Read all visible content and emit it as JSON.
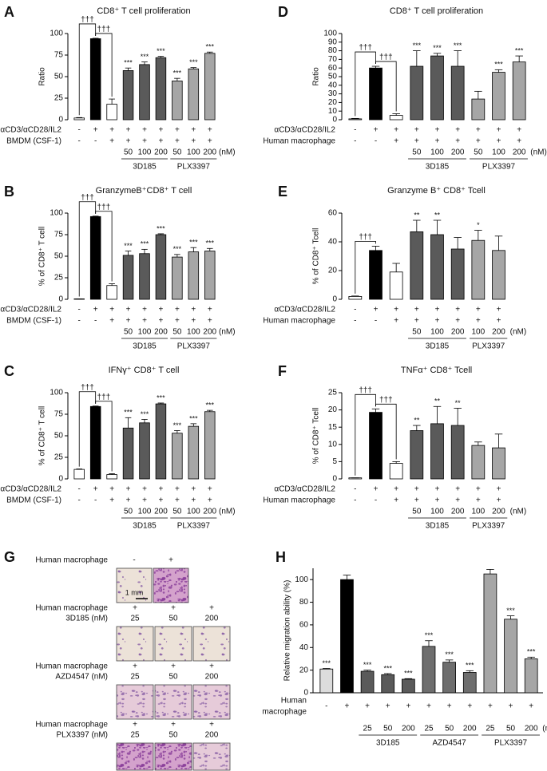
{
  "chart_data": [
    {
      "type": "bar",
      "panel": "A",
      "title": "CD8⁺ T cell proliferation",
      "ylabel": "Ratio",
      "ylim": [
        0,
        100
      ],
      "yticks": [
        0,
        25,
        50,
        75,
        100
      ],
      "values": [
        2,
        94,
        18,
        57,
        64,
        72,
        45,
        59,
        77
      ],
      "errors": [
        0.5,
        0.5,
        6,
        3,
        3,
        1.5,
        3,
        1.5,
        1.5
      ],
      "colors": [
        "#ffffff",
        "#000000",
        "#ffffff",
        "#5a5a5a",
        "#5a5a5a",
        "#5a5a5a",
        "#a6a6a6",
        "#a6a6a6",
        "#a6a6a6"
      ],
      "significance": [
        null,
        null,
        null,
        "***",
        "***",
        "***",
        "***",
        "***",
        "***"
      ],
      "comparisons": [
        "†††",
        "†††"
      ],
      "rows": [
        {
          "label": "αCD3/αCD28/IL2",
          "values": [
            "-",
            "+",
            "+",
            "+",
            "+",
            "+",
            "+",
            "+",
            "+"
          ]
        },
        {
          "label": "BMDM (CSF-1)",
          "values": [
            "-",
            "-",
            "+",
            "+",
            "+",
            "+",
            "+",
            "+",
            "+"
          ]
        }
      ],
      "doses": [
        null,
        null,
        null,
        50,
        100,
        200,
        50,
        100,
        200
      ],
      "dose_unit": "(nM)",
      "groups": [
        "3D185",
        "PLX3397"
      ]
    },
    {
      "type": "bar",
      "panel": "B",
      "title": "GranzymeB⁺CD8⁺ T cell",
      "ylabel": "% of CD8⁺ T cell",
      "ylim": [
        0,
        100
      ],
      "yticks": [
        0,
        25,
        50,
        75,
        100
      ],
      "values": [
        0.5,
        96,
        16,
        51,
        53,
        75,
        49,
        55,
        56
      ],
      "errors": [
        0,
        0.5,
        2,
        5,
        5,
        1,
        3,
        5,
        3
      ],
      "colors": [
        "#ffffff",
        "#000000",
        "#ffffff",
        "#5a5a5a",
        "#5a5a5a",
        "#5a5a5a",
        "#a6a6a6",
        "#a6a6a6",
        "#a6a6a6"
      ],
      "significance": [
        null,
        null,
        null,
        "***",
        "***",
        "***",
        "***",
        "***",
        "***"
      ],
      "comparisons": [
        "†††",
        "†††"
      ],
      "rows": [
        {
          "label": "αCD3/αCD28/IL2",
          "values": [
            "-",
            "+",
            "+",
            "+",
            "+",
            "+",
            "+",
            "+",
            "+"
          ]
        },
        {
          "label": "BMDM (CSF-1)",
          "values": [
            "-",
            "-",
            "+",
            "+",
            "+",
            "+",
            "+",
            "+",
            "+"
          ]
        }
      ],
      "doses": [
        null,
        null,
        null,
        50,
        100,
        200,
        50,
        100,
        200
      ],
      "dose_unit": "(nM)",
      "groups": [
        "3D185",
        "PLX3397"
      ]
    },
    {
      "type": "bar",
      "panel": "C",
      "title": "IFNγ⁺ CD8⁺ T cell",
      "ylabel": "% of CD8⁺ T cell",
      "ylim": [
        0,
        100
      ],
      "yticks": [
        0,
        25,
        50,
        75,
        100
      ],
      "values": [
        11,
        84,
        5,
        59,
        65,
        87,
        53,
        61,
        78
      ],
      "errors": [
        0.5,
        0.5,
        1,
        12,
        4,
        1,
        3,
        3,
        1.5
      ],
      "colors": [
        "#ffffff",
        "#000000",
        "#ffffff",
        "#5a5a5a",
        "#5a5a5a",
        "#5a5a5a",
        "#a6a6a6",
        "#a6a6a6",
        "#a6a6a6"
      ],
      "significance": [
        null,
        null,
        null,
        "***",
        "***",
        "***",
        "***",
        "***",
        "***"
      ],
      "comparisons": [
        "†††",
        "†††"
      ],
      "rows": [
        {
          "label": "αCD3/αCD28/IL2",
          "values": [
            "-",
            "+",
            "+",
            "+",
            "+",
            "+",
            "+",
            "+",
            "+"
          ]
        },
        {
          "label": "BMDM (CSF-1)",
          "values": [
            "-",
            "-",
            "+",
            "+",
            "+",
            "+",
            "+",
            "+",
            "+"
          ]
        }
      ],
      "doses": [
        null,
        null,
        null,
        50,
        100,
        200,
        50,
        100,
        200
      ],
      "dose_unit": "(nM)",
      "groups": [
        "3D185",
        "PLX3397"
      ]
    },
    {
      "type": "bar",
      "panel": "D",
      "title": "CD8⁺ T cell proliferation",
      "ylabel": "Ratio",
      "ylim": [
        0,
        100
      ],
      "yticks": [
        0,
        10,
        20,
        30,
        40,
        50,
        60,
        70,
        80,
        90,
        100
      ],
      "values": [
        1,
        60,
        5,
        62,
        74,
        62,
        24,
        55,
        67
      ],
      "errors": [
        0.5,
        2,
        2,
        18,
        3,
        18,
        9,
        3,
        7
      ],
      "colors": [
        "#ffffff",
        "#000000",
        "#ffffff",
        "#5a5a5a",
        "#5a5a5a",
        "#5a5a5a",
        "#a6a6a6",
        "#a6a6a6",
        "#a6a6a6"
      ],
      "significance": [
        null,
        null,
        null,
        "***",
        "***",
        "***",
        null,
        "***",
        "***"
      ],
      "comparisons": [
        "†††",
        "†††"
      ],
      "rows": [
        {
          "label": "αCD3/αCD28/IL2",
          "values": [
            "-",
            "+",
            "+",
            "+",
            "+",
            "+",
            "+",
            "+",
            "+"
          ]
        },
        {
          "label": "Human macrophage",
          "values": [
            "-",
            "-",
            "+",
            "+",
            "+",
            "+",
            "+",
            "+",
            "+"
          ]
        }
      ],
      "doses": [
        null,
        null,
        null,
        50,
        100,
        200,
        50,
        100,
        200
      ],
      "dose_unit": "(nM)",
      "groups": [
        "3D185",
        "PLX3397"
      ]
    },
    {
      "type": "bar",
      "panel": "E",
      "title": "Granzyme B⁺ CD8⁺ Tcell",
      "ylabel": "% of CD8⁺ Tcell",
      "ylim": [
        0,
        60
      ],
      "yticks": [
        0,
        20,
        40,
        60
      ],
      "values": [
        2,
        34,
        19,
        47,
        45,
        35,
        41,
        34
      ],
      "errors": [
        0.3,
        3,
        6,
        8,
        10,
        8,
        7,
        10
      ],
      "colors": [
        "#ffffff",
        "#000000",
        "#ffffff",
        "#5a5a5a",
        "#5a5a5a",
        "#5a5a5a",
        "#a6a6a6",
        "#a6a6a6"
      ],
      "significance": [
        null,
        null,
        null,
        "**",
        "**",
        null,
        "*",
        null
      ],
      "comparisons": [
        "†††"
      ],
      "rows": [
        {
          "label": "αCD3/αCD28/IL2",
          "values": [
            "-",
            "+",
            "+",
            "+",
            "+",
            "+",
            "+",
            "+"
          ]
        },
        {
          "label": "Human macrophage",
          "values": [
            "-",
            "-",
            "+",
            "+",
            "+",
            "+",
            "+",
            "+"
          ]
        }
      ],
      "doses": [
        null,
        null,
        null,
        50,
        100,
        200,
        100,
        200
      ],
      "dose_unit": "(nM)",
      "groups": [
        "3D185",
        "PLX3397"
      ]
    },
    {
      "type": "bar",
      "panel": "F",
      "title": "TNFα⁺ CD8⁺ Tcell",
      "ylabel": "% of CD8⁺ Tcell",
      "ylim": [
        0,
        25
      ],
      "yticks": [
        0,
        5,
        10,
        15,
        20,
        25
      ],
      "values": [
        0.3,
        19.3,
        4.5,
        14,
        16,
        15.5,
        9.7,
        9
      ],
      "errors": [
        0,
        1,
        0.5,
        1.5,
        5,
        5,
        1,
        4
      ],
      "colors": [
        "#ffffff",
        "#000000",
        "#ffffff",
        "#5a5a5a",
        "#5a5a5a",
        "#5a5a5a",
        "#a6a6a6",
        "#a6a6a6"
      ],
      "significance": [
        null,
        null,
        null,
        "**",
        "**",
        "**",
        null,
        null
      ],
      "comparisons": [
        "†††",
        "†††"
      ],
      "rows": [
        {
          "label": "αCD3/αCD28/IL2",
          "values": [
            "-",
            "+",
            "+",
            "+",
            "+",
            "+",
            "+",
            "+"
          ]
        },
        {
          "label": "Human macrophage",
          "values": [
            "-",
            "-",
            "+",
            "+",
            "+",
            "+",
            "+",
            "+"
          ]
        }
      ],
      "doses": [
        null,
        null,
        null,
        50,
        100,
        200,
        100,
        200
      ],
      "dose_unit": "(nM)",
      "groups": [
        "3D185",
        "PLX3397"
      ]
    },
    {
      "type": "bar",
      "panel": "H",
      "ylabel": "Relative migration ability (%)",
      "ylim": [
        0,
        110
      ],
      "yticks": [
        0,
        20,
        40,
        60,
        80,
        100
      ],
      "values": [
        21,
        100,
        19,
        16,
        12,
        41,
        27,
        18,
        105,
        65,
        30
      ],
      "errors": [
        0.5,
        4,
        1,
        1,
        0.5,
        5,
        2,
        1.5,
        4,
        3,
        1.5
      ],
      "colors": [
        "#dcdcdc",
        "#000000",
        "#5a5a5a",
        "#5a5a5a",
        "#5a5a5a",
        "#6e6e6e",
        "#6e6e6e",
        "#6e6e6e",
        "#a6a6a6",
        "#a6a6a6",
        "#a6a6a6"
      ],
      "significance": [
        "***",
        null,
        "***",
        "***",
        "***",
        "***",
        "***",
        "***",
        null,
        "***",
        "***"
      ],
      "rows": [
        {
          "label": [
            "Human",
            "macrophage"
          ],
          "values": [
            "-",
            "+",
            "+",
            "+",
            "+",
            "+",
            "+",
            "+",
            "+",
            "+",
            "+"
          ]
        }
      ],
      "doses": [
        null,
        null,
        25,
        50,
        200,
        25,
        50,
        200,
        25,
        50,
        200
      ],
      "dose_unit": "(nM)",
      "groups": [
        "3D185",
        "AZD4547",
        "PLX3397"
      ]
    }
  ],
  "panel_g": {
    "panel": "G",
    "header": {
      "label": "Human macrophage",
      "values": [
        "-",
        "+"
      ]
    },
    "scale_bar": "1 mm",
    "treatments": [
      {
        "macrophage_label": "Human macrophage",
        "macrophage_values": [
          "+",
          "+",
          "+"
        ],
        "drug_label": "3D185 (nM)",
        "doses": [
          25,
          50,
          200
        ]
      },
      {
        "macrophage_label": "Human macrophage",
        "macrophage_values": [
          "+",
          "+",
          "+"
        ],
        "drug_label": "AZD4547 (nM)",
        "doses": [
          25,
          50,
          200
        ]
      },
      {
        "macrophage_label": "Human macrophage",
        "macrophage_values": [
          "+",
          "+",
          "+"
        ],
        "drug_label": "PLX3397 (nM)",
        "doses": [
          25,
          50,
          200
        ]
      }
    ]
  }
}
